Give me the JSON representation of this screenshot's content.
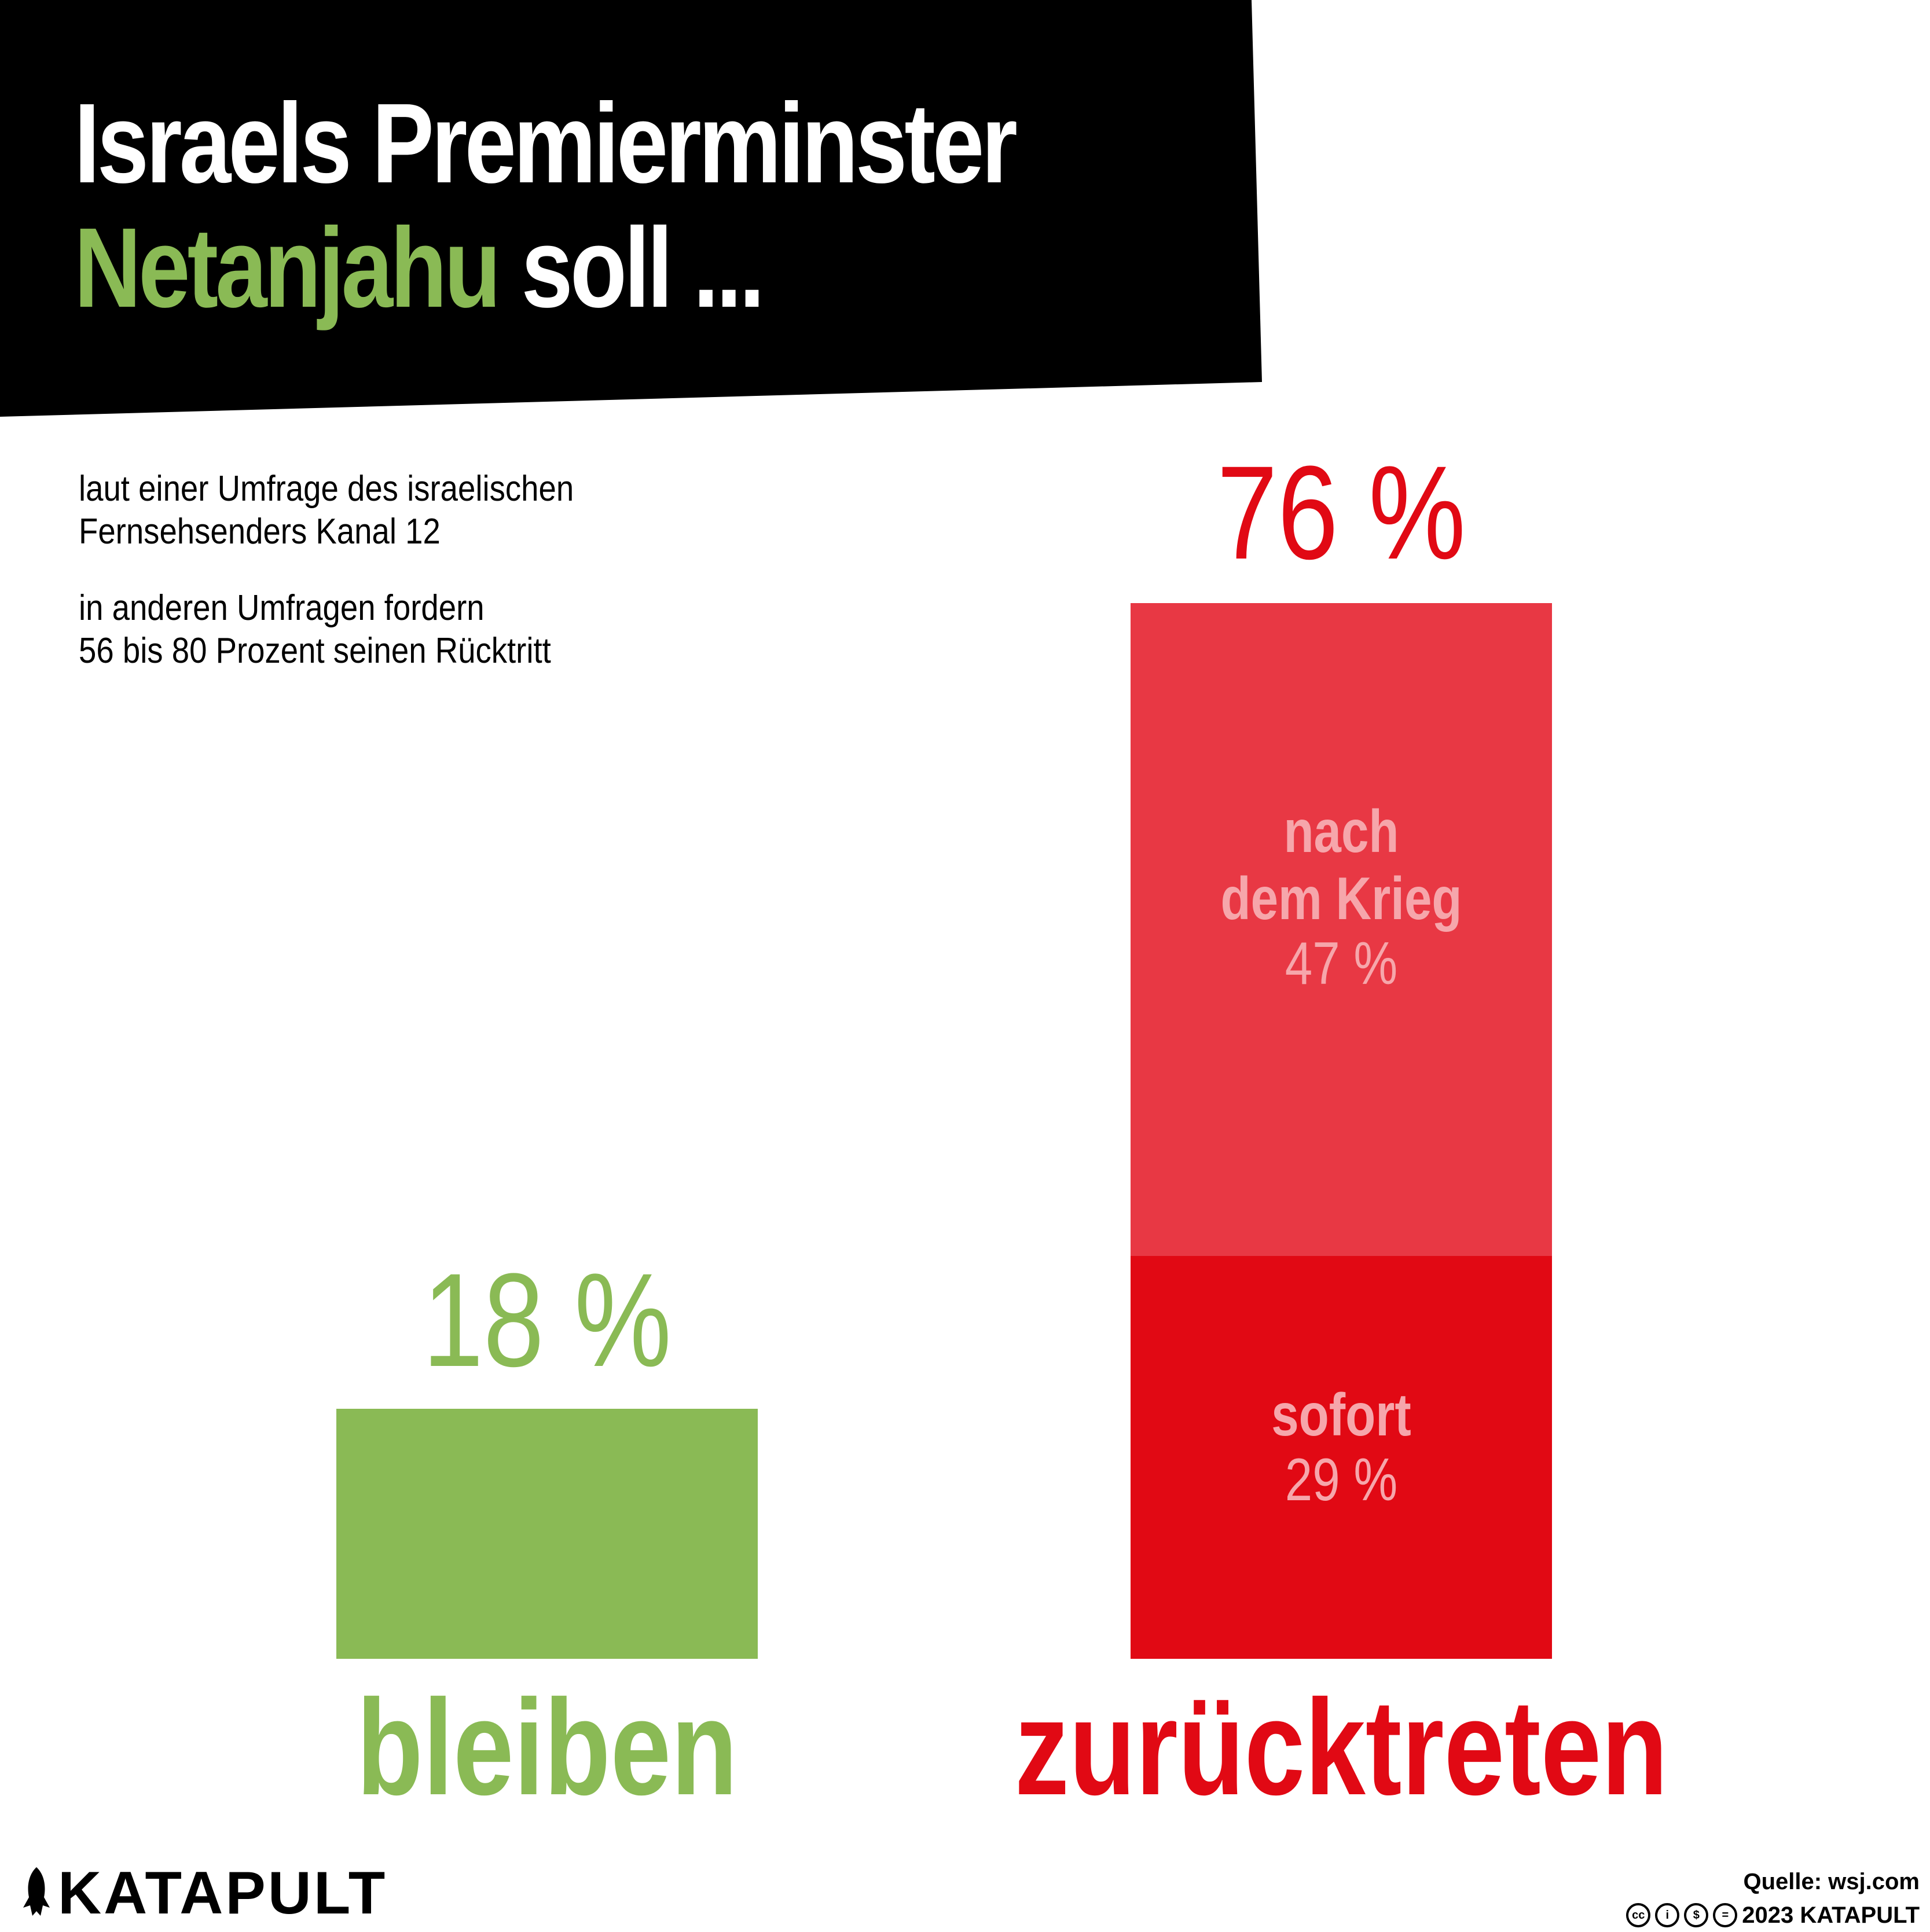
{
  "header": {
    "title_line1": "Israels Premierminster",
    "title_accent": "Netanjahu",
    "title_rest": " soll ..."
  },
  "notes": {
    "line1": "laut einer Umfrage des israelischen",
    "line2": "Fernsehsenders Kanal 12",
    "line3": "in anderen Umfragen fordern",
    "line4": "56 bis 80 Prozent seinen Rücktritt"
  },
  "colors": {
    "green": "#8aba55",
    "red_dark": "#e10914",
    "red_light": "#e83844",
    "inner_label": "#f6a6ab"
  },
  "chart_data": {
    "type": "bar",
    "stacked": true,
    "categories": [
      "bleiben",
      "zurücktreten"
    ],
    "totals": [
      "18 %",
      "76 %"
    ],
    "series": [
      {
        "name": "",
        "values": [
          18,
          0
        ]
      },
      {
        "name": "sofort",
        "values": [
          0,
          29
        ],
        "value_label": "29 %"
      },
      {
        "name": "nach dem Krieg",
        "values": [
          0,
          47
        ],
        "value_label": "47 %"
      }
    ],
    "inner_labels": {
      "sofort": "sofort",
      "nach_line1": "nach",
      "nach_line2": "dem Krieg"
    },
    "unit": "%"
  },
  "footer": {
    "logo": "KATAPULT",
    "source": "Quelle: wsj.com",
    "copyright": "2023 KATAPULT",
    "license_icons": [
      "cc-icon",
      "by-icon",
      "nc-icon",
      "nd-icon"
    ]
  }
}
